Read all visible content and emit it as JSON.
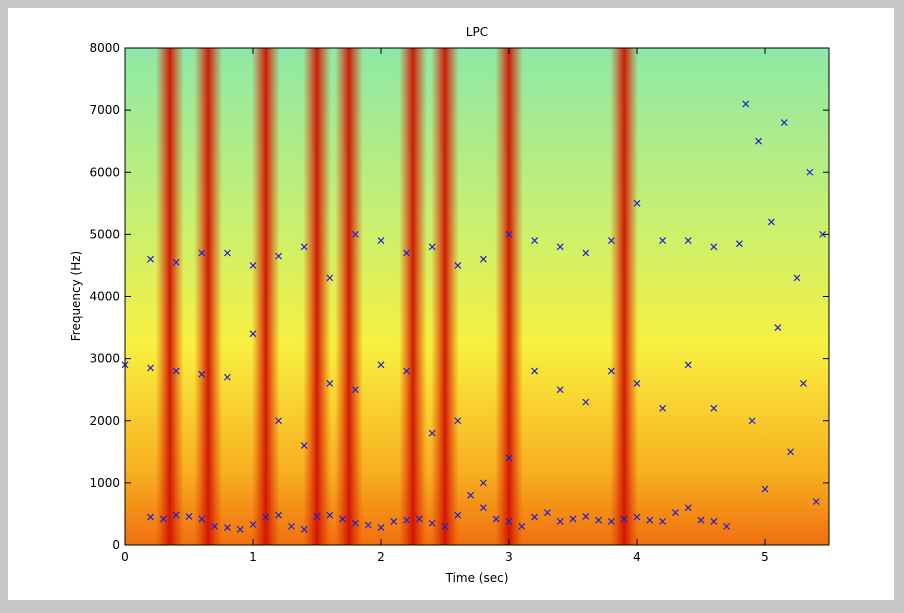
{
  "chart_data": {
    "type": "scatter",
    "title": "LPC",
    "x_label": "Time (sec)",
    "y_label": "Frequency (Hz)",
    "xlim": [
      0,
      5.5
    ],
    "ylim": [
      0,
      8000
    ],
    "xticks": [
      0,
      1,
      2,
      3,
      4,
      5
    ],
    "yticks": [
      0,
      1000,
      2000,
      3000,
      4000,
      5000,
      6000,
      7000,
      8000
    ],
    "ridges": [
      0.35,
      0.65,
      1.1,
      1.5,
      1.75,
      2.25,
      2.5,
      3.0,
      3.9
    ],
    "ridge_color": "#d01000",
    "series": [
      {
        "color": "#2020d0",
        "x": [
          0.2,
          0.3,
          0.4,
          0.5,
          0.6,
          0.7,
          0.8,
          0.9,
          1.0,
          1.1,
          1.2,
          1.3,
          1.4,
          1.5,
          1.6,
          1.7,
          1.8,
          1.9,
          2.0,
          2.1,
          2.2,
          2.3,
          2.4,
          2.5,
          2.6,
          2.7,
          2.8,
          2.9,
          3.0,
          3.1,
          3.2,
          3.3,
          3.4,
          3.5,
          3.6,
          3.7,
          3.8,
          3.9,
          4.0,
          4.1,
          4.2,
          4.3,
          4.4,
          4.5,
          4.6,
          4.7
        ],
        "values": [
          450,
          420,
          480,
          460,
          420,
          300,
          280,
          250,
          330,
          450,
          480,
          300,
          250,
          460,
          480,
          420,
          350,
          320,
          280,
          380,
          400,
          420,
          350,
          300,
          480,
          800,
          600,
          420,
          380,
          300,
          450,
          520,
          380,
          420,
          460,
          400,
          380,
          420,
          450,
          400,
          380,
          520,
          600,
          400,
          380,
          300
        ]
      },
      {
        "color": "#2020d0",
        "x": [
          0.0,
          0.2,
          0.4,
          0.6,
          0.8,
          1.0,
          1.2,
          1.4,
          1.6,
          1.8,
          2.0,
          2.2,
          2.4,
          2.6,
          2.8,
          3.0,
          3.2,
          3.4,
          3.6,
          3.8,
          4.0,
          4.2,
          4.4,
          4.6
        ],
        "values": [
          2900,
          2850,
          2800,
          2750,
          2700,
          3400,
          2000,
          1600,
          2600,
          2500,
          2900,
          2800,
          1800,
          2000,
          1000,
          1400,
          2800,
          2500,
          2300,
          2800,
          2600,
          2200,
          2900,
          2200
        ]
      },
      {
        "color": "#2020d0",
        "x": [
          0.2,
          0.4,
          0.6,
          0.8,
          1.0,
          1.2,
          1.4,
          1.6,
          1.8,
          2.0,
          2.2,
          2.4,
          2.6,
          2.8,
          3.0,
          3.2,
          3.4,
          3.6,
          3.8,
          4.0,
          4.2,
          4.4,
          4.6,
          4.8
        ],
        "values": [
          4600,
          4550,
          4700,
          4700,
          4500,
          4650,
          4800,
          4300,
          5000,
          4900,
          4700,
          4800,
          4500,
          4600,
          5000,
          4900,
          4800,
          4700,
          4900,
          5500,
          4900,
          4900,
          4800,
          4850
        ]
      },
      {
        "color": "#2020d0",
        "x": [
          4.85,
          4.9,
          4.95,
          5.0,
          5.05,
          5.1,
          5.15,
          5.2,
          5.25,
          5.3,
          5.35,
          5.4,
          5.45
        ],
        "values": [
          7100,
          2000,
          6500,
          900,
          5200,
          3500,
          6800,
          1500,
          4300,
          2600,
          6000,
          700,
          5000
        ]
      }
    ]
  }
}
